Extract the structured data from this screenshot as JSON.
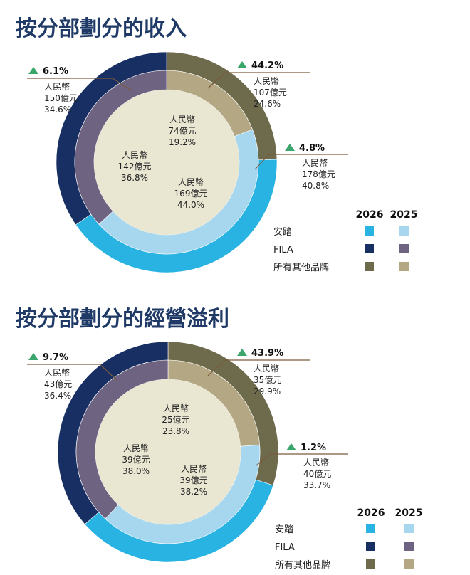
{
  "colors": {
    "anta_2026": "#29b3e3",
    "anta_2025": "#a6d7ef",
    "fila_2026": "#172f63",
    "fila_2025": "#6e6482",
    "others_2026": "#6e6a4c",
    "others_2025": "#b3a883",
    "center": "#e9e6d2",
    "title": "#1f3a66",
    "up_arrow": "#3aa66b",
    "line": "#7a5a3c"
  },
  "legend": {
    "years": [
      "2026",
      "2025"
    ],
    "items": [
      "安踏",
      "FILA",
      "所有其他品牌"
    ]
  },
  "chart_data": [
    {
      "type": "pie",
      "title": "按分部劃分的收入",
      "categories": [
        "安踏",
        "FILA",
        "所有其他品牌"
      ],
      "series": [
        {
          "name": "2026",
          "values": [
            40.8,
            34.6,
            24.6
          ],
          "amounts": [
            "人民幣\n178億元",
            "人民幣\n150億元",
            "人民幣\n107億元"
          ],
          "growth": [
            "4.8%",
            "6.1%",
            "44.2%"
          ]
        },
        {
          "name": "2025",
          "values": [
            44.0,
            36.8,
            19.2
          ],
          "amounts": [
            "人民幣\n169億元",
            "人民幣\n142億元",
            "人民幣\n74億元"
          ]
        }
      ],
      "outer_labels": [
        {
          "growth": "4.8%",
          "currency": "人民幣",
          "amount": "178億元",
          "share": "40.8%"
        },
        {
          "growth": "6.1%",
          "currency": "人民幣",
          "amount": "150億元",
          "share": "34.6%"
        },
        {
          "growth": "44.2%",
          "currency": "人民幣",
          "amount": "107億元",
          "share": "24.6%"
        }
      ],
      "inner_labels": [
        {
          "currency": "人民幣",
          "amount": "169億元",
          "share": "44.0%"
        },
        {
          "currency": "人民幣",
          "amount": "142億元",
          "share": "36.8%"
        },
        {
          "currency": "人民幣",
          "amount": "74億元",
          "share": "19.2%"
        }
      ]
    },
    {
      "type": "pie",
      "title": "按分部劃分的經營溢利",
      "categories": [
        "安踏",
        "FILA",
        "所有其他品牌"
      ],
      "series": [
        {
          "name": "2026",
          "values": [
            33.7,
            36.4,
            29.9
          ]
        },
        {
          "name": "2025",
          "values": [
            38.2,
            38.0,
            23.8
          ]
        }
      ],
      "outer_labels": [
        {
          "growth": "1.2%",
          "currency": "人民幣",
          "amount": "40億元",
          "share": "33.7%"
        },
        {
          "growth": "9.7%",
          "currency": "人民幣",
          "amount": "43億元",
          "share": "36.4%"
        },
        {
          "growth": "43.9%",
          "currency": "人民幣",
          "amount": "35億元",
          "share": "29.9%"
        }
      ],
      "inner_labels": [
        {
          "currency": "人民幣",
          "amount": "39億元",
          "share": "38.2%"
        },
        {
          "currency": "人民幣",
          "amount": "39億元",
          "share": "38.0%"
        },
        {
          "currency": "人民幣",
          "amount": "25億元",
          "share": "23.8%"
        }
      ]
    }
  ]
}
